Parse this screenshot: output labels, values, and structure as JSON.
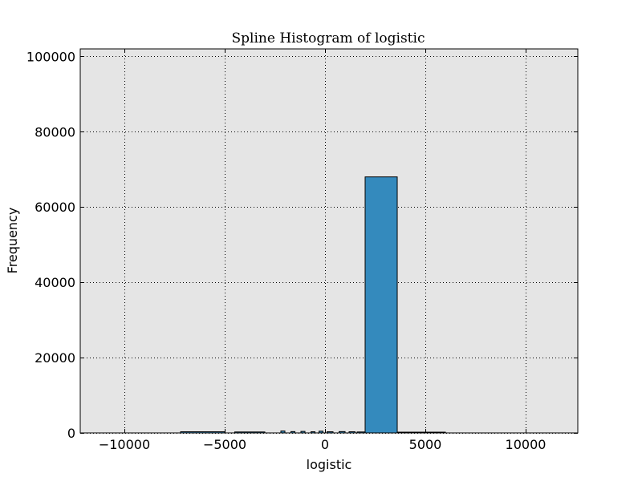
{
  "chart_data": {
    "type": "bar",
    "title": "Spline Histogram of logistic",
    "xlabel": "logistic",
    "ylabel": "Frequency",
    "xlim": [
      -12200,
      12600
    ],
    "ylim": [
      0,
      102000
    ],
    "xticks": [
      -10000,
      -5000,
      0,
      5000,
      10000
    ],
    "xtick_labels": [
      "−10000",
      "−5000",
      "0",
      "5000",
      "10000"
    ],
    "yticks": [
      0,
      20000,
      40000,
      60000,
      80000,
      100000
    ],
    "ytick_labels": [
      "0",
      "20000",
      "40000",
      "60000",
      "80000",
      "100000"
    ],
    "grid": true,
    "bar_color": "#348abd",
    "edge_color": "#000000",
    "background_color": "#e5e5e5",
    "bins": [
      {
        "x0": -7200,
        "x1": -5000,
        "value": 300
      },
      {
        "x0": -4500,
        "x1": -3000,
        "value": 250
      },
      {
        "x0": -2200,
        "x1": -2000,
        "value": 500
      },
      {
        "x0": -1700,
        "x1": -1500,
        "value": 350
      },
      {
        "x0": -1200,
        "x1": -1000,
        "value": 400
      },
      {
        "x0": -700,
        "x1": -500,
        "value": 300
      },
      {
        "x0": -300,
        "x1": -100,
        "value": 450
      },
      {
        "x0": 100,
        "x1": 400,
        "value": 300
      },
      {
        "x0": 700,
        "x1": 1000,
        "value": 350
      },
      {
        "x0": 1200,
        "x1": 1500,
        "value": 300
      },
      {
        "x0": 1600,
        "x1": 2000,
        "value": 250
      },
      {
        "x0": 2000,
        "x1": 3600,
        "value": 68000
      },
      {
        "x0": 3600,
        "x1": 6000,
        "value": 200
      }
    ]
  }
}
